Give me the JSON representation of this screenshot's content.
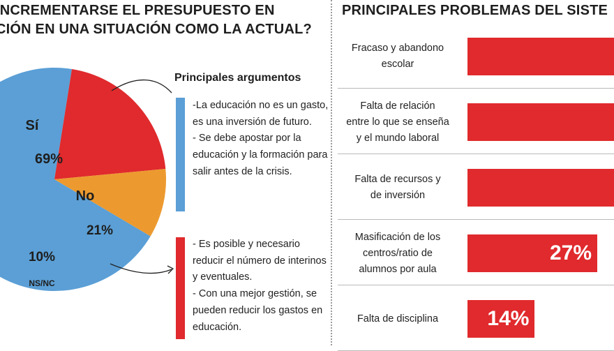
{
  "left_panel": {
    "title_lines": [
      "INCREMENTARSE EL PRESUPUESTO EN",
      "CIÓN EN UNA SITUACIÓN COMO LA ACTUAL?"
    ],
    "arguments_title": "Principales argumentos",
    "yes_arguments": [
      "-La educación no es un gasto, es una inversión de futuro.",
      "- Se debe apostar por la educación y la formación para salir antes de la crisis."
    ],
    "no_arguments": [
      "- Es posible y necesario reducir el número de interinos y eventuales.",
      "- Con una mejor gestión, se pueden reducir los gastos en educación."
    ]
  },
  "right_panel": {
    "title": "PRINCIPALES PROBLEMAS DEL SISTE"
  },
  "colors": {
    "yes": "#5b9fd6",
    "no": "#e02a2d",
    "nsnc": "#ec9a2f",
    "bar": "#e02a2d"
  },
  "chart_data": [
    {
      "type": "pie",
      "slices": [
        {
          "label": "Sí",
          "value": 69,
          "value_label": "69%"
        },
        {
          "label": "No",
          "value": 21,
          "value_label": "21%"
        },
        {
          "label": "NS/NC",
          "value": 10,
          "value_label": "10%"
        }
      ]
    },
    {
      "type": "bar",
      "orientation": "horizontal",
      "categories": [
        "Fracaso y abandono escolar",
        "Falta de relación entre lo que se enseña y el mundo laboral",
        "Falta de recursos y de inversión",
        "Masificación de los centros/ratio de alumnos por aula",
        "Falta de disciplina"
      ],
      "category_lines": [
        [
          "Fracaso y abandono",
          "escolar"
        ],
        [
          "Falta de relación",
          "entre lo que se enseña",
          "y el mundo laboral"
        ],
        [
          "Falta de recursos  y",
          "de inversión"
        ],
        [
          "Masificación de los",
          "centros/ratio de",
          "alumnos por aula"
        ],
        [
          "Falta de disciplina"
        ]
      ],
      "values": [
        null,
        null,
        null,
        27,
        14
      ],
      "value_labels": [
        "",
        "",
        "",
        "27%",
        "14%"
      ],
      "note": "The first three bars are cut off by the image edge; their value labels are not visible."
    }
  ]
}
